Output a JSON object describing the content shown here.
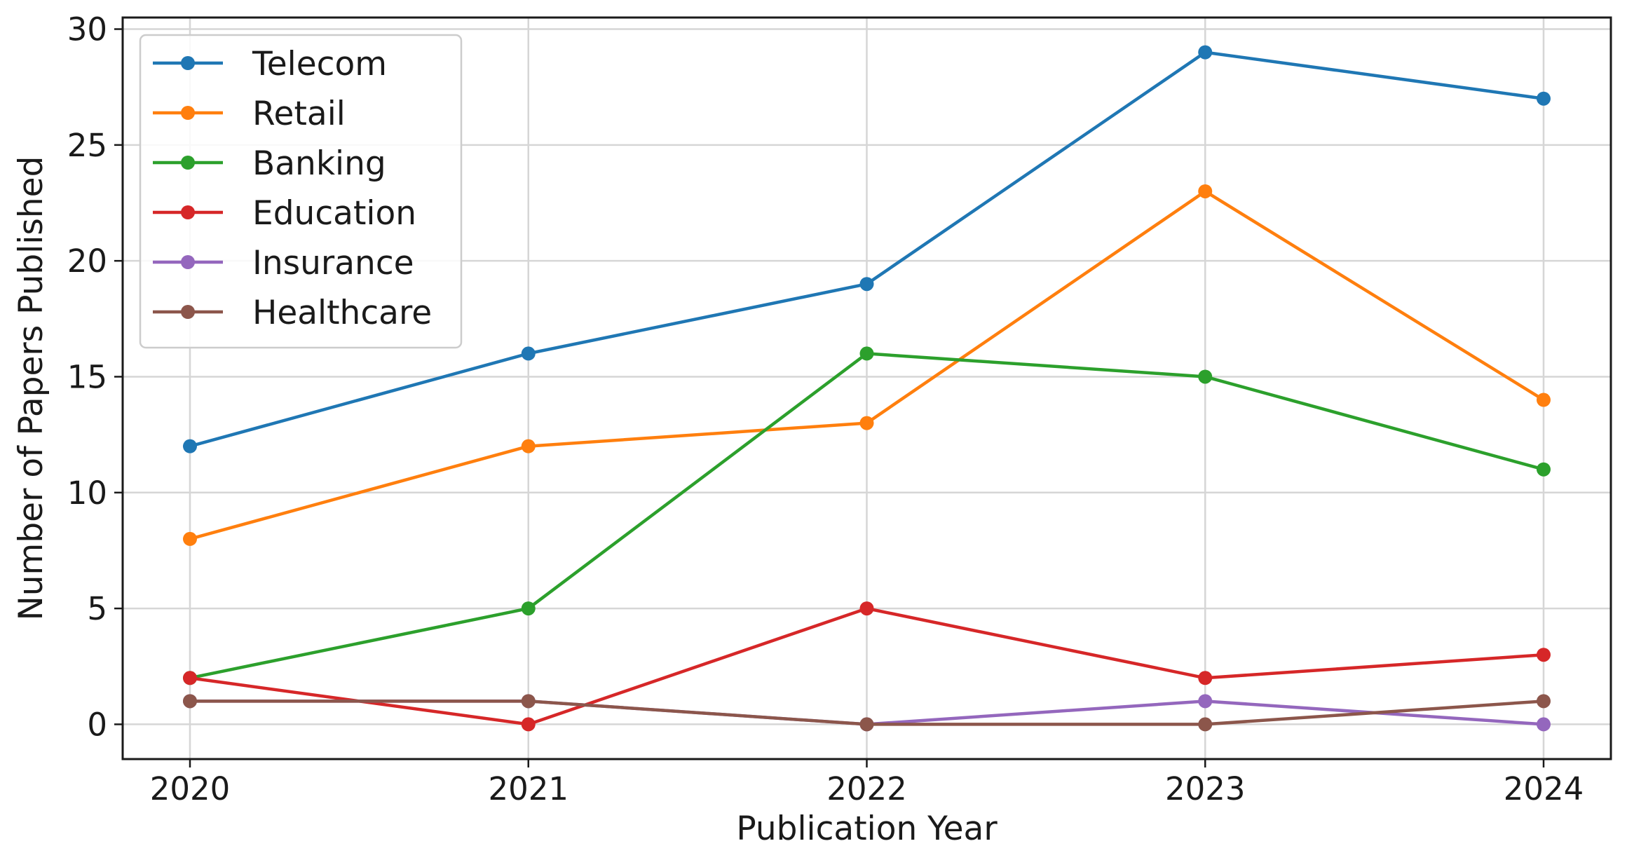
{
  "chart_data": {
    "type": "line",
    "title": "",
    "xlabel": "Publication Year",
    "ylabel": "Number of Papers Published",
    "categories": [
      "2020",
      "2021",
      "2022",
      "2023",
      "2024"
    ],
    "ylim": [
      -1.5,
      30.5
    ],
    "yticks": [
      0,
      5,
      10,
      15,
      20,
      25,
      30
    ],
    "grid": true,
    "legend_position": "top-left",
    "markers": "circle",
    "series": [
      {
        "name": "Telecom",
        "color": "#1f77b4",
        "values": [
          12,
          16,
          19,
          29,
          27
        ]
      },
      {
        "name": "Retail",
        "color": "#ff7f0e",
        "values": [
          8,
          12,
          13,
          23,
          14
        ]
      },
      {
        "name": "Banking",
        "color": "#2ca02c",
        "values": [
          2,
          5,
          16,
          15,
          11
        ]
      },
      {
        "name": "Education",
        "color": "#d62728",
        "values": [
          2,
          0,
          5,
          2,
          3
        ]
      },
      {
        "name": "Insurance",
        "color": "#9467bd",
        "values": [
          1,
          1,
          0,
          1,
          0
        ]
      },
      {
        "name": "Healthcare",
        "color": "#8c564b",
        "values": [
          1,
          1,
          0,
          0,
          1
        ]
      }
    ]
  }
}
